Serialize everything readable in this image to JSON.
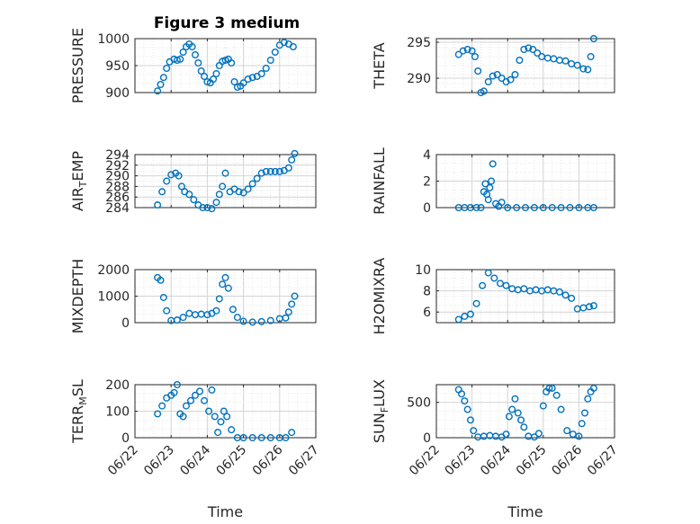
{
  "figure": {
    "title": "Figure 3 medium",
    "background": "#ffffff"
  },
  "style": {
    "marker_color": "#0072BD",
    "axis_color": "#262626",
    "grid_color": "#dedede"
  },
  "chart_data": [
    {
      "type": "scatter",
      "id": "pressure",
      "ylabel": "PRESSURE",
      "ylim": [
        900,
        1000
      ],
      "yticks": [
        900,
        950,
        1000
      ],
      "ytick_labels": [
        "900",
        "950",
        "1000"
      ],
      "grid": true,
      "title": "Figure 3 medium",
      "x": [
        "06/22 15:00",
        "06/22 17:00",
        "06/22 19:00",
        "06/22 21:00",
        "06/22 23:00",
        "06/23 02:00",
        "06/23 04:00",
        "06/23 06:00",
        "06/23 08:00",
        "06/23 10:00",
        "06/23 12:00",
        "06/23 14:00",
        "06/23 16:00",
        "06/23 18:00",
        "06/23 20:00",
        "06/23 22:00",
        "06/24 00:00",
        "06/24 02:00",
        "06/24 04:00",
        "06/24 06:00",
        "06/24 08:00",
        "06/24 10:00",
        "06/24 12:00",
        "06/24 14:00",
        "06/24 16:00",
        "06/24 18:00",
        "06/24 20:00",
        "06/24 22:00",
        "06/25 00:00",
        "06/25 03:00",
        "06/25 06:00",
        "06/25 09:00",
        "06/25 12:00",
        "06/25 15:00",
        "06/25 18:00",
        "06/25 21:00",
        "06/26 00:00",
        "06/26 03:00",
        "06/26 06:00",
        "06/26 09:00"
      ],
      "y": [
        903,
        915,
        928,
        945,
        957,
        962,
        960,
        962,
        975,
        985,
        990,
        985,
        970,
        955,
        940,
        930,
        920,
        918,
        925,
        935,
        950,
        958,
        960,
        962,
        955,
        920,
        910,
        912,
        918,
        925,
        928,
        930,
        935,
        945,
        960,
        975,
        988,
        993,
        990,
        985
      ]
    },
    {
      "type": "scatter",
      "id": "theta",
      "ylabel": "THETA",
      "ylim": [
        288,
        295.5
      ],
      "yticks": [
        290,
        295
      ],
      "ytick_labels": [
        "290",
        "295"
      ],
      "grid": true,
      "x": [
        "06/22 15:00",
        "06/22 18:00",
        "06/22 21:00",
        "06/23 00:00",
        "06/23 02:00",
        "06/23 04:00",
        "06/23 06:00",
        "06/23 08:00",
        "06/23 11:00",
        "06/23 14:00",
        "06/23 17:00",
        "06/23 20:00",
        "06/23 23:00",
        "06/24 02:00",
        "06/24 05:00",
        "06/24 08:00",
        "06/24 11:00",
        "06/24 14:00",
        "06/24 17:00",
        "06/24 20:00",
        "06/24 23:00",
        "06/25 03:00",
        "06/25 07:00",
        "06/25 11:00",
        "06/25 15:00",
        "06/25 19:00",
        "06/25 23:00",
        "06/26 03:00",
        "06/26 06:00",
        "06/26 08:00",
        "06/26 10:00"
      ],
      "y": [
        293.3,
        293.8,
        294.0,
        293.8,
        293.0,
        291.0,
        288.0,
        288.2,
        289.5,
        290.3,
        290.5,
        290.0,
        289.5,
        289.8,
        290.5,
        292.5,
        294.0,
        294.2,
        294.0,
        293.5,
        293.0,
        292.8,
        292.7,
        292.5,
        292.4,
        292.0,
        291.8,
        291.3,
        291.2,
        293.0,
        295.5
      ]
    },
    {
      "type": "scatter",
      "id": "air_temp",
      "ylabel": "AIR_TEMP",
      "ylim": [
        284,
        294
      ],
      "yticks": [
        284,
        286,
        288,
        290,
        292,
        294
      ],
      "ytick_labels": [
        "284",
        "286",
        "288",
        "290",
        "292",
        "294"
      ],
      "grid": true,
      "x": [
        "06/22 15:00",
        "06/22 18:00",
        "06/22 21:00",
        "06/23 00:00",
        "06/23 03:00",
        "06/23 05:00",
        "06/23 07:00",
        "06/23 09:00",
        "06/23 12:00",
        "06/23 15:00",
        "06/23 18:00",
        "06/23 21:00",
        "06/24 00:00",
        "06/24 03:00",
        "06/24 06:00",
        "06/24 08:00",
        "06/24 10:00",
        "06/24 12:00",
        "06/24 15:00",
        "06/24 18:00",
        "06/24 21:00",
        "06/25 00:00",
        "06/25 03:00",
        "06/25 06:00",
        "06/25 09:00",
        "06/25 12:00",
        "06/25 15:00",
        "06/25 18:00",
        "06/25 21:00",
        "06/26 00:00",
        "06/26 03:00",
        "06/26 06:00",
        "06/26 08:00",
        "06/26 10:00"
      ],
      "y": [
        284.5,
        287.0,
        289.0,
        290.2,
        290.5,
        290.0,
        288.0,
        287.0,
        286.5,
        285.5,
        284.5,
        284.0,
        284.0,
        283.8,
        285.0,
        286.5,
        288.0,
        290.5,
        287.0,
        287.5,
        287.0,
        286.8,
        287.5,
        288.5,
        289.5,
        290.5,
        290.8,
        290.8,
        290.8,
        290.8,
        291.0,
        291.5,
        293.0,
        294.2
      ]
    },
    {
      "type": "scatter",
      "id": "rainfall",
      "ylabel": "RAINFALL",
      "ylim": [
        0,
        4
      ],
      "yticks": [
        0,
        2,
        4
      ],
      "ytick_labels": [
        "0",
        "2",
        "4"
      ],
      "grid": true,
      "x": [
        "06/22 15:00",
        "06/22 19:00",
        "06/22 23:00",
        "06/23 03:00",
        "06/23 06:00",
        "06/23 08:00",
        "06/23 09:00",
        "06/23 10:00",
        "06/23 11:00",
        "06/23 12:00",
        "06/23 13:00",
        "06/23 14:00",
        "06/23 16:00",
        "06/23 18:00",
        "06/23 20:00",
        "06/24 00:00",
        "06/24 06:00",
        "06/24 12:00",
        "06/24 18:00",
        "06/25 00:00",
        "06/25 06:00",
        "06/25 12:00",
        "06/25 18:00",
        "06/26 00:00",
        "06/26 06:00",
        "06/26 10:00"
      ],
      "y": [
        0,
        0,
        0,
        0,
        0,
        1.2,
        1.8,
        1.0,
        0.6,
        1.5,
        2.0,
        3.3,
        0.3,
        0.1,
        0.4,
        0,
        0,
        0,
        0,
        0,
        0,
        0,
        0,
        0,
        0,
        0
      ]
    },
    {
      "type": "scatter",
      "id": "mixdepth",
      "ylabel": "MIXDEPTH",
      "ylim": [
        0,
        2000
      ],
      "yticks": [
        0,
        1000,
        2000
      ],
      "ytick_labels": [
        "0",
        "1000",
        "2000"
      ],
      "grid": true,
      "x": [
        "06/22 15:00",
        "06/22 17:00",
        "06/22 19:00",
        "06/22 21:00",
        "06/23 00:00",
        "06/23 04:00",
        "06/23 08:00",
        "06/23 12:00",
        "06/23 16:00",
        "06/23 20:00",
        "06/24 00:00",
        "06/24 03:00",
        "06/24 06:00",
        "06/24 08:00",
        "06/24 10:00",
        "06/24 12:00",
        "06/24 14:00",
        "06/24 17:00",
        "06/24 20:00",
        "06/25 00:00",
        "06/25 06:00",
        "06/25 12:00",
        "06/25 18:00",
        "06/26 00:00",
        "06/26 04:00",
        "06/26 06:00",
        "06/26 08:00",
        "06/26 10:00"
      ],
      "y": [
        1700,
        1600,
        950,
        450,
        80,
        100,
        200,
        350,
        300,
        320,
        300,
        350,
        450,
        900,
        1450,
        1700,
        1300,
        500,
        200,
        50,
        20,
        40,
        80,
        150,
        180,
        400,
        700,
        1000
      ]
    },
    {
      "type": "scatter",
      "id": "h2omixra",
      "ylabel": "H2OMIXRA",
      "ylim": [
        5,
        10
      ],
      "yticks": [
        6,
        8,
        10
      ],
      "ytick_labels": [
        "6",
        "8",
        "10"
      ],
      "grid": true,
      "x": [
        "06/22 15:00",
        "06/22 19:00",
        "06/22 23:00",
        "06/23 03:00",
        "06/23 07:00",
        "06/23 11:00",
        "06/23 15:00",
        "06/23 19:00",
        "06/23 23:00",
        "06/24 03:00",
        "06/24 07:00",
        "06/24 11:00",
        "06/24 15:00",
        "06/24 19:00",
        "06/24 23:00",
        "06/25 03:00",
        "06/25 07:00",
        "06/25 11:00",
        "06/25 15:00",
        "06/25 19:00",
        "06/25 23:00",
        "06/26 03:00",
        "06/26 07:00",
        "06/26 10:00"
      ],
      "y": [
        5.3,
        5.6,
        5.8,
        6.8,
        8.5,
        9.7,
        9.2,
        8.7,
        8.5,
        8.2,
        8.1,
        8.2,
        8.0,
        8.1,
        8.0,
        8.1,
        8.0,
        7.9,
        7.6,
        7.3,
        6.3,
        6.4,
        6.5,
        6.6
      ]
    },
    {
      "type": "scatter",
      "id": "terr_msl",
      "ylabel": "TERR_MSL",
      "ylim": [
        0,
        200
      ],
      "yticks": [
        0,
        100,
        200
      ],
      "ytick_labels": [
        "0",
        "100",
        "200"
      ],
      "grid": true,
      "x": [
        "06/22 15:00",
        "06/22 18:00",
        "06/22 21:00",
        "06/23 00:00",
        "06/23 02:00",
        "06/23 04:00",
        "06/23 06:00",
        "06/23 08:00",
        "06/23 10:00",
        "06/23 13:00",
        "06/23 16:00",
        "06/23 19:00",
        "06/23 22:00",
        "06/24 01:00",
        "06/24 03:00",
        "06/24 05:00",
        "06/24 07:00",
        "06/24 09:00",
        "06/24 11:00",
        "06/24 13:00",
        "06/24 16:00",
        "06/24 20:00",
        "06/25 00:00",
        "06/25 06:00",
        "06/25 12:00",
        "06/25 18:00",
        "06/26 00:00",
        "06/26 04:00",
        "06/26 08:00"
      ],
      "y": [
        90,
        120,
        150,
        160,
        170,
        200,
        90,
        80,
        120,
        140,
        160,
        175,
        140,
        100,
        180,
        80,
        20,
        60,
        100,
        80,
        30,
        0,
        0,
        0,
        0,
        0,
        0,
        0,
        20
      ]
    },
    {
      "type": "scatter",
      "id": "sun_flux",
      "ylabel": "SUN_FLUX",
      "ylim": [
        0,
        750
      ],
      "yticks": [
        0,
        500
      ],
      "ytick_labels": [
        "0",
        "500"
      ],
      "grid": true,
      "x": [
        "06/22 15:00",
        "06/22 17:00",
        "06/22 19:00",
        "06/22 21:00",
        "06/22 23:00",
        "06/23 01:00",
        "06/23 04:00",
        "06/23 08:00",
        "06/23 12:00",
        "06/23 16:00",
        "06/23 20:00",
        "06/23 23:00",
        "06/24 01:00",
        "06/24 03:00",
        "06/24 05:00",
        "06/24 07:00",
        "06/24 09:00",
        "06/24 11:00",
        "06/24 14:00",
        "06/24 18:00",
        "06/24 21:00",
        "06/25 00:00",
        "06/25 02:00",
        "06/25 04:00",
        "06/25 06:00",
        "06/25 09:00",
        "06/25 12:00",
        "06/25 16:00",
        "06/25 20:00",
        "06/26 00:00",
        "06/26 02:00",
        "06/26 04:00",
        "06/26 06:00",
        "06/26 08:00",
        "06/26 10:00"
      ],
      "y": [
        680,
        620,
        520,
        400,
        250,
        100,
        10,
        20,
        30,
        20,
        10,
        50,
        300,
        400,
        550,
        350,
        250,
        150,
        20,
        10,
        60,
        450,
        650,
        700,
        700,
        600,
        400,
        100,
        50,
        20,
        200,
        350,
        550,
        650,
        700
      ]
    }
  ],
  "xaxis": {
    "ticks": [
      "06/22 00:00",
      "06/23 00:00",
      "06/24 00:00",
      "06/25 00:00",
      "06/26 00:00",
      "06/27 00:00"
    ],
    "tick_labels": [
      "06/22",
      "06/23",
      "06/24",
      "06/25",
      "06/26",
      "06/27"
    ],
    "xlabel": "Time"
  }
}
